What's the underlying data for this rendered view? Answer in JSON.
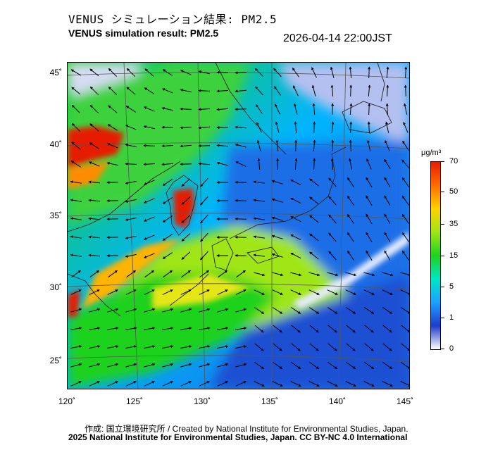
{
  "header": {
    "title_jp": "VENUS シミュレーション結果: PM2.5",
    "title_en": "VENUS simulation result: PM2.5",
    "datetime": "2026-04-14 22:00JST"
  },
  "map": {
    "lat_labels": [
      "45˚",
      "40˚",
      "35˚",
      "30˚",
      "25˚"
    ],
    "lon_labels": [
      "120˚",
      "125˚",
      "130˚",
      "135˚",
      "140˚",
      "145˚"
    ]
  },
  "colorbar": {
    "unit": "μg/m³",
    "ticks": [
      "70",
      "50",
      "35",
      "15",
      "5",
      "1",
      "0"
    ],
    "colors": [
      "#ffffff",
      "#1e3cc8",
      "#1ea0ff",
      "#00e6c8",
      "#1ed21e",
      "#a0e614",
      "#ffd200",
      "#ff6e00",
      "#e61e00"
    ]
  },
  "footer": {
    "credit_line1": "作成: 国立環境研究所 / Created by National Institute for Environmental Studies, Japan.",
    "credit_line2": "2025 National Institute for Environmental Studies, Japan. CC BY-NC 4.0 International"
  }
}
